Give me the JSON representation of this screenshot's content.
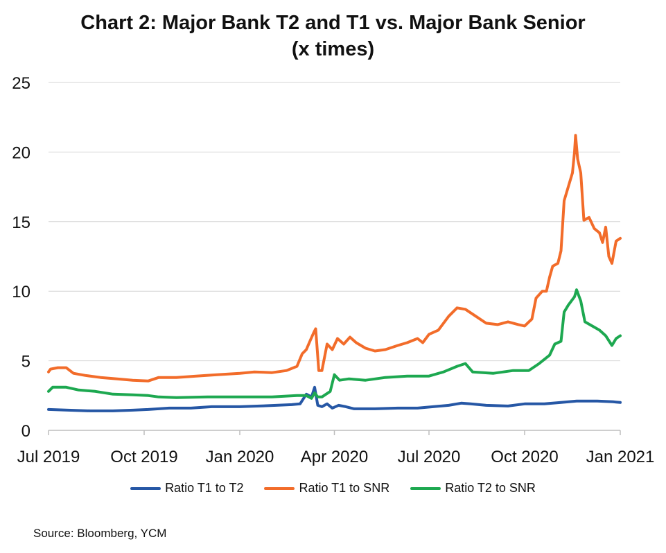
{
  "header": {
    "title_line1": "Chart 2: Major Bank T2 and T1 vs. Major Bank Senior",
    "title_line2": "(x times)"
  },
  "footer": {
    "source": "Source: Bloomberg, YCM"
  },
  "chart_data": {
    "type": "line",
    "title": "Chart 2: Major Bank T2 and T1 vs. Major Bank Senior (x times)",
    "xlabel": "",
    "ylabel": "",
    "xlim": [
      "2019-07-01",
      "2021-01-01"
    ],
    "ylim": [
      0,
      25
    ],
    "y_ticks": [
      0,
      5,
      10,
      15,
      20,
      25
    ],
    "x_ticks": [
      {
        "date": "2019-07-01",
        "label": "Jul 2019"
      },
      {
        "date": "2019-10-01",
        "label": "Oct 2019"
      },
      {
        "date": "2020-01-01",
        "label": "Jan 2020"
      },
      {
        "date": "2020-04-01",
        "label": "Apr 2020"
      },
      {
        "date": "2020-07-01",
        "label": "Jul 2020"
      },
      {
        "date": "2020-10-01",
        "label": "Oct 2020"
      },
      {
        "date": "2021-01-01",
        "label": "Jan 2021"
      }
    ],
    "grid": "horizontal",
    "legend_position": "bottom",
    "series": [
      {
        "name": "Ratio T1 to T2",
        "color": "#2657A5",
        "points": [
          [
            "2019-07-01",
            1.5
          ],
          [
            "2019-07-20",
            1.45
          ],
          [
            "2019-08-10",
            1.4
          ],
          [
            "2019-09-01",
            1.4
          ],
          [
            "2019-09-20",
            1.45
          ],
          [
            "2019-10-05",
            1.5
          ],
          [
            "2019-10-25",
            1.6
          ],
          [
            "2019-11-15",
            1.6
          ],
          [
            "2019-12-05",
            1.7
          ],
          [
            "2020-01-01",
            1.7
          ],
          [
            "2020-01-20",
            1.75
          ],
          [
            "2020-02-05",
            1.8
          ],
          [
            "2020-02-20",
            1.85
          ],
          [
            "2020-02-28",
            1.9
          ],
          [
            "2020-03-05",
            2.6
          ],
          [
            "2020-03-10",
            2.4
          ],
          [
            "2020-03-13",
            3.1
          ],
          [
            "2020-03-16",
            1.8
          ],
          [
            "2020-03-20",
            1.7
          ],
          [
            "2020-03-25",
            1.9
          ],
          [
            "2020-03-30",
            1.6
          ],
          [
            "2020-04-05",
            1.8
          ],
          [
            "2020-04-12",
            1.7
          ],
          [
            "2020-04-20",
            1.55
          ],
          [
            "2020-05-10",
            1.55
          ],
          [
            "2020-06-01",
            1.6
          ],
          [
            "2020-06-20",
            1.6
          ],
          [
            "2020-07-05",
            1.7
          ],
          [
            "2020-07-20",
            1.8
          ],
          [
            "2020-08-01",
            1.95
          ],
          [
            "2020-08-10",
            1.9
          ],
          [
            "2020-08-25",
            1.8
          ],
          [
            "2020-09-15",
            1.75
          ],
          [
            "2020-10-01",
            1.9
          ],
          [
            "2020-10-20",
            1.9
          ],
          [
            "2020-11-05",
            2.0
          ],
          [
            "2020-11-20",
            2.1
          ],
          [
            "2020-12-10",
            2.1
          ],
          [
            "2020-12-25",
            2.05
          ],
          [
            "2021-01-01",
            2.0
          ]
        ]
      },
      {
        "name": "Ratio T1 to SNR",
        "color": "#F26C2A",
        "points": [
          [
            "2019-07-01",
            4.2
          ],
          [
            "2019-07-03",
            4.4
          ],
          [
            "2019-07-10",
            4.5
          ],
          [
            "2019-07-18",
            4.5
          ],
          [
            "2019-07-25",
            4.1
          ],
          [
            "2019-08-05",
            3.95
          ],
          [
            "2019-08-20",
            3.8
          ],
          [
            "2019-09-05",
            3.7
          ],
          [
            "2019-09-20",
            3.6
          ],
          [
            "2019-10-05",
            3.55
          ],
          [
            "2019-10-15",
            3.8
          ],
          [
            "2019-11-01",
            3.8
          ],
          [
            "2019-11-20",
            3.9
          ],
          [
            "2019-12-10",
            4.0
          ],
          [
            "2020-01-01",
            4.1
          ],
          [
            "2020-01-15",
            4.2
          ],
          [
            "2020-02-01",
            4.15
          ],
          [
            "2020-02-15",
            4.3
          ],
          [
            "2020-02-25",
            4.6
          ],
          [
            "2020-03-01",
            5.5
          ],
          [
            "2020-03-05",
            5.8
          ],
          [
            "2020-03-09",
            6.5
          ],
          [
            "2020-03-12",
            7.0
          ],
          [
            "2020-03-14",
            7.3
          ],
          [
            "2020-03-17",
            4.3
          ],
          [
            "2020-03-20",
            4.3
          ],
          [
            "2020-03-25",
            6.2
          ],
          [
            "2020-03-30",
            5.8
          ],
          [
            "2020-04-04",
            6.6
          ],
          [
            "2020-04-10",
            6.2
          ],
          [
            "2020-04-16",
            6.7
          ],
          [
            "2020-04-22",
            6.3
          ],
          [
            "2020-05-01",
            5.9
          ],
          [
            "2020-05-10",
            5.7
          ],
          [
            "2020-05-20",
            5.8
          ],
          [
            "2020-06-01",
            6.1
          ],
          [
            "2020-06-10",
            6.3
          ],
          [
            "2020-06-20",
            6.6
          ],
          [
            "2020-06-25",
            6.3
          ],
          [
            "2020-07-01",
            6.9
          ],
          [
            "2020-07-10",
            7.2
          ],
          [
            "2020-07-20",
            8.2
          ],
          [
            "2020-07-28",
            8.8
          ],
          [
            "2020-08-05",
            8.7
          ],
          [
            "2020-08-15",
            8.2
          ],
          [
            "2020-08-25",
            7.7
          ],
          [
            "2020-09-05",
            7.6
          ],
          [
            "2020-09-15",
            7.8
          ],
          [
            "2020-09-25",
            7.6
          ],
          [
            "2020-10-01",
            7.5
          ],
          [
            "2020-10-08",
            8.0
          ],
          [
            "2020-10-12",
            9.5
          ],
          [
            "2020-10-18",
            10.0
          ],
          [
            "2020-10-22",
            10.0
          ],
          [
            "2020-10-25",
            11.0
          ],
          [
            "2020-10-28",
            11.8
          ],
          [
            "2020-11-02",
            12.0
          ],
          [
            "2020-11-05",
            12.9
          ],
          [
            "2020-11-08",
            16.5
          ],
          [
            "2020-11-12",
            17.5
          ],
          [
            "2020-11-16",
            18.5
          ],
          [
            "2020-11-18",
            20.0
          ],
          [
            "2020-11-19",
            21.2
          ],
          [
            "2020-11-21",
            19.5
          ],
          [
            "2020-11-24",
            18.5
          ],
          [
            "2020-11-27",
            15.1
          ],
          [
            "2020-12-02",
            15.3
          ],
          [
            "2020-12-07",
            14.5
          ],
          [
            "2020-12-12",
            14.2
          ],
          [
            "2020-12-15",
            13.5
          ],
          [
            "2020-12-18",
            14.6
          ],
          [
            "2020-12-21",
            12.5
          ],
          [
            "2020-12-24",
            12.0
          ],
          [
            "2020-12-28",
            13.6
          ],
          [
            "2021-01-01",
            13.8
          ]
        ]
      },
      {
        "name": "Ratio T2 to SNR",
        "color": "#1DA850",
        "points": [
          [
            "2019-07-01",
            2.8
          ],
          [
            "2019-07-05",
            3.1
          ],
          [
            "2019-07-18",
            3.1
          ],
          [
            "2019-07-30",
            2.9
          ],
          [
            "2019-08-15",
            2.8
          ],
          [
            "2019-09-01",
            2.6
          ],
          [
            "2019-09-20",
            2.55
          ],
          [
            "2019-10-05",
            2.5
          ],
          [
            "2019-10-15",
            2.4
          ],
          [
            "2019-11-01",
            2.35
          ],
          [
            "2019-12-01",
            2.4
          ],
          [
            "2020-01-01",
            2.4
          ],
          [
            "2020-02-01",
            2.4
          ],
          [
            "2020-02-25",
            2.5
          ],
          [
            "2020-03-05",
            2.5
          ],
          [
            "2020-03-10",
            2.3
          ],
          [
            "2020-03-13",
            2.7
          ],
          [
            "2020-03-16",
            2.4
          ],
          [
            "2020-03-20",
            2.4
          ],
          [
            "2020-03-28",
            2.8
          ],
          [
            "2020-04-01",
            4.0
          ],
          [
            "2020-04-06",
            3.6
          ],
          [
            "2020-04-15",
            3.7
          ],
          [
            "2020-05-01",
            3.6
          ],
          [
            "2020-05-20",
            3.8
          ],
          [
            "2020-06-10",
            3.9
          ],
          [
            "2020-07-01",
            3.9
          ],
          [
            "2020-07-15",
            4.2
          ],
          [
            "2020-07-28",
            4.6
          ],
          [
            "2020-08-05",
            4.8
          ],
          [
            "2020-08-12",
            4.2
          ],
          [
            "2020-09-01",
            4.1
          ],
          [
            "2020-09-20",
            4.3
          ],
          [
            "2020-10-05",
            4.3
          ],
          [
            "2020-10-15",
            4.8
          ],
          [
            "2020-10-25",
            5.4
          ],
          [
            "2020-10-30",
            6.2
          ],
          [
            "2020-11-05",
            6.4
          ],
          [
            "2020-11-08",
            8.5
          ],
          [
            "2020-11-12",
            9.0
          ],
          [
            "2020-11-18",
            9.6
          ],
          [
            "2020-11-20",
            10.1
          ],
          [
            "2020-11-24",
            9.3
          ],
          [
            "2020-11-28",
            7.8
          ],
          [
            "2020-12-05",
            7.5
          ],
          [
            "2020-12-12",
            7.2
          ],
          [
            "2020-12-18",
            6.8
          ],
          [
            "2020-12-24",
            6.1
          ],
          [
            "2020-12-28",
            6.6
          ],
          [
            "2021-01-01",
            6.8
          ]
        ]
      }
    ]
  }
}
